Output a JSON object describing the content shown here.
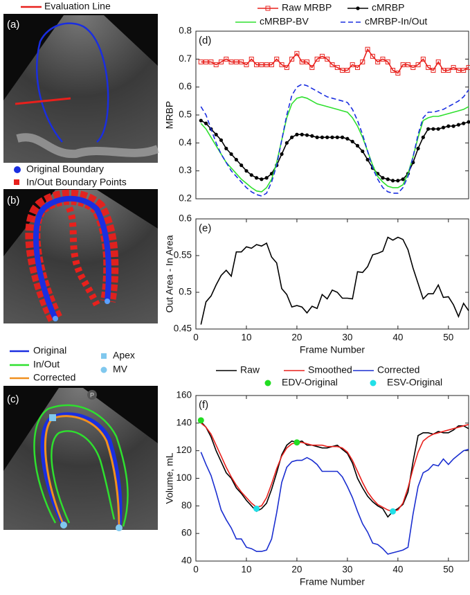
{
  "images": [
    {
      "label": "(a)",
      "legend": [
        "Evaluation Line"
      ]
    },
    {
      "label": "(b)",
      "legend": [
        "Original Boundary",
        "In/Out Boundary Points"
      ]
    },
    {
      "label": "(c)",
      "legend": [
        "Original",
        "In/Out",
        "Corrected",
        "Apex",
        "MV"
      ],
      "icon": "P"
    }
  ],
  "chart_data": [
    {
      "type": "line",
      "label": "(d)",
      "ylabel": "MRBP",
      "x": [
        1,
        2,
        3,
        4,
        5,
        6,
        7,
        8,
        9,
        10,
        11,
        12,
        13,
        14,
        15,
        16,
        17,
        18,
        19,
        20,
        21,
        22,
        23,
        24,
        25,
        26,
        27,
        28,
        29,
        30,
        31,
        32,
        33,
        34,
        35,
        36,
        37,
        38,
        39,
        40,
        41,
        42,
        43,
        44,
        45,
        46,
        47,
        48,
        49,
        50,
        51,
        52,
        53,
        54
      ],
      "xlim": [
        0,
        54
      ],
      "ylim": [
        0.2,
        0.8
      ],
      "yticks": [
        0.2,
        0.3,
        0.4,
        0.5,
        0.6,
        0.7,
        0.8
      ],
      "series": [
        {
          "name": "Raw MRBP",
          "color": "#e8201c",
          "marker": "square",
          "linestyle": "solid",
          "values": [
            0.69,
            0.69,
            0.69,
            0.68,
            0.69,
            0.7,
            0.69,
            0.69,
            0.69,
            0.68,
            0.7,
            0.68,
            0.68,
            0.68,
            0.68,
            0.7,
            0.68,
            0.67,
            0.7,
            0.72,
            0.69,
            0.69,
            0.67,
            0.7,
            0.71,
            0.7,
            0.68,
            0.67,
            0.66,
            0.66,
            0.68,
            0.67,
            0.69,
            0.735,
            0.71,
            0.69,
            0.7,
            0.69,
            0.66,
            0.65,
            0.68,
            0.68,
            0.67,
            0.68,
            0.7,
            0.67,
            0.66,
            0.69,
            0.66,
            0.66,
            0.67,
            0.66,
            0.66,
            0.67
          ]
        },
        {
          "name": "cMRBP",
          "color": "#000000",
          "marker": "circle",
          "linestyle": "solid",
          "values": [
            0.48,
            0.47,
            0.45,
            0.43,
            0.41,
            0.38,
            0.36,
            0.34,
            0.32,
            0.3,
            0.285,
            0.275,
            0.27,
            0.275,
            0.29,
            0.32,
            0.36,
            0.4,
            0.42,
            0.43,
            0.43,
            0.428,
            0.425,
            0.42,
            0.42,
            0.42,
            0.42,
            0.42,
            0.42,
            0.415,
            0.405,
            0.39,
            0.37,
            0.34,
            0.31,
            0.29,
            0.275,
            0.27,
            0.265,
            0.265,
            0.27,
            0.29,
            0.33,
            0.38,
            0.42,
            0.45,
            0.45,
            0.45,
            0.455,
            0.46,
            0.46,
            0.465,
            0.47,
            0.475
          ]
        },
        {
          "name": "cMRBP-BV",
          "color": "#2ee02e",
          "marker": "none",
          "linestyle": "solid",
          "values": [
            0.47,
            0.45,
            0.42,
            0.39,
            0.36,
            0.33,
            0.31,
            0.29,
            0.27,
            0.255,
            0.24,
            0.228,
            0.225,
            0.24,
            0.27,
            0.33,
            0.41,
            0.49,
            0.54,
            0.56,
            0.565,
            0.56,
            0.55,
            0.54,
            0.535,
            0.53,
            0.525,
            0.52,
            0.515,
            0.51,
            0.49,
            0.46,
            0.42,
            0.37,
            0.32,
            0.28,
            0.26,
            0.245,
            0.24,
            0.24,
            0.25,
            0.29,
            0.35,
            0.42,
            0.48,
            0.49,
            0.495,
            0.495,
            0.5,
            0.505,
            0.51,
            0.515,
            0.52,
            0.53
          ]
        },
        {
          "name": "cMRBP-In/Out",
          "color": "#1a2ee0",
          "marker": "none",
          "linestyle": "dashed",
          "values": [
            0.53,
            0.5,
            0.45,
            0.4,
            0.36,
            0.33,
            0.3,
            0.28,
            0.26,
            0.24,
            0.225,
            0.215,
            0.21,
            0.22,
            0.26,
            0.32,
            0.41,
            0.5,
            0.57,
            0.6,
            0.61,
            0.605,
            0.595,
            0.585,
            0.575,
            0.565,
            0.56,
            0.555,
            0.55,
            0.545,
            0.52,
            0.48,
            0.43,
            0.37,
            0.31,
            0.27,
            0.24,
            0.225,
            0.22,
            0.22,
            0.24,
            0.28,
            0.35,
            0.43,
            0.49,
            0.51,
            0.51,
            0.515,
            0.52,
            0.53,
            0.54,
            0.55,
            0.565,
            0.59
          ]
        }
      ]
    },
    {
      "type": "line",
      "label": "(e)",
      "xlabel": "Frame Number",
      "ylabel": "Out Area - In Area",
      "x": [
        1,
        2,
        3,
        4,
        5,
        6,
        7,
        8,
        9,
        10,
        11,
        12,
        13,
        14,
        15,
        16,
        17,
        18,
        19,
        20,
        21,
        22,
        23,
        24,
        25,
        26,
        27,
        28,
        29,
        30,
        31,
        32,
        33,
        34,
        35,
        36,
        37,
        38,
        39,
        40,
        41,
        42,
        43,
        44,
        45,
        46,
        47,
        48,
        49,
        50,
        51,
        52,
        53,
        54
      ],
      "xlim": [
        0,
        54
      ],
      "xticks": [
        0,
        10,
        20,
        30,
        40,
        50
      ],
      "ylim": [
        0.45,
        0.6
      ],
      "yticks": [
        0.45,
        0.5,
        0.55,
        0.6
      ],
      "series": [
        {
          "color": "#000000",
          "marker": "none",
          "linestyle": "solid",
          "values": [
            0.456,
            0.487,
            0.495,
            0.51,
            0.523,
            0.53,
            0.522,
            0.555,
            0.555,
            0.562,
            0.56,
            0.565,
            0.563,
            0.567,
            0.548,
            0.54,
            0.505,
            0.497,
            0.48,
            0.482,
            0.48,
            0.472,
            0.481,
            0.478,
            0.497,
            0.491,
            0.503,
            0.5,
            0.492,
            0.492,
            0.491,
            0.528,
            0.527,
            0.535,
            0.551,
            0.553,
            0.556,
            0.575,
            0.571,
            0.575,
            0.572,
            0.558,
            0.533,
            0.512,
            0.491,
            0.498,
            0.498,
            0.51,
            0.493,
            0.494,
            0.483,
            0.467,
            0.485,
            0.475
          ]
        }
      ]
    },
    {
      "type": "line",
      "label": "(f)",
      "xlabel": "Frame Number",
      "ylabel": "Volume, mL",
      "x": [
        1,
        2,
        3,
        4,
        5,
        6,
        7,
        8,
        9,
        10,
        11,
        12,
        13,
        14,
        15,
        16,
        17,
        18,
        19,
        20,
        21,
        22,
        23,
        24,
        25,
        26,
        27,
        28,
        29,
        30,
        31,
        32,
        33,
        34,
        35,
        36,
        37,
        38,
        39,
        40,
        41,
        42,
        43,
        44,
        45,
        46,
        47,
        48,
        49,
        50,
        51,
        52,
        53,
        54
      ],
      "xlim": [
        0,
        54
      ],
      "xticks": [
        0,
        10,
        20,
        30,
        40,
        50
      ],
      "ylim": [
        40,
        160
      ],
      "yticks": [
        40,
        60,
        80,
        100,
        120,
        140,
        160
      ],
      "series": [
        {
          "name": "Raw",
          "color": "#000000",
          "marker": "none",
          "linestyle": "solid",
          "values": [
            141,
            137,
            130,
            120,
            112,
            104,
            100,
            93,
            89,
            84,
            80,
            76,
            78,
            82,
            92,
            104,
            117,
            124,
            127,
            126,
            127,
            124,
            124,
            123,
            122,
            122,
            123,
            124,
            121,
            118,
            111,
            100,
            93,
            87,
            83,
            80,
            78,
            72,
            76,
            78,
            81,
            90,
            112,
            131,
            133,
            133,
            132,
            134,
            133,
            133,
            135,
            138,
            138,
            136
          ]
        },
        {
          "name": "Smoothed",
          "color": "#e8201c",
          "marker": "none",
          "linestyle": "solid",
          "values": [
            140,
            137,
            132,
            124,
            116,
            108,
            101,
            95,
            90,
            86,
            82,
            79,
            80,
            86,
            96,
            107,
            116,
            122,
            125,
            126,
            126,
            125,
            124,
            124,
            124,
            123,
            123,
            123,
            122,
            119,
            113,
            105,
            97,
            90,
            85,
            81,
            79,
            77,
            76,
            77,
            82,
            93,
            107,
            119,
            127,
            130,
            132,
            133,
            134,
            135,
            136,
            137,
            138,
            139
          ]
        },
        {
          "name": "Corrected",
          "color": "#1a2ed0",
          "marker": "none",
          "linestyle": "solid",
          "values": [
            119,
            110,
            102,
            90,
            77,
            70,
            64,
            56,
            56,
            50,
            49,
            47,
            47,
            48,
            56,
            75,
            97,
            108,
            112,
            113,
            113,
            115,
            113,
            110,
            105,
            105,
            105,
            105,
            101,
            94,
            86,
            76,
            67,
            61,
            53,
            52,
            49,
            45,
            46,
            47,
            48,
            50,
            74,
            94,
            104,
            106,
            110,
            109,
            114,
            110,
            114,
            117,
            120,
            121
          ]
        },
        {
          "name": "EDV-Original",
          "color": "#22dd22",
          "marker": "dot",
          "linestyle": "none",
          "x": [
            1,
            20
          ],
          "values": [
            142,
            126
          ]
        },
        {
          "name": "ESV-Original",
          "color": "#22e0e8",
          "marker": "dot",
          "linestyle": "none",
          "x": [
            12,
            39
          ],
          "values": [
            78,
            76
          ]
        }
      ]
    }
  ]
}
